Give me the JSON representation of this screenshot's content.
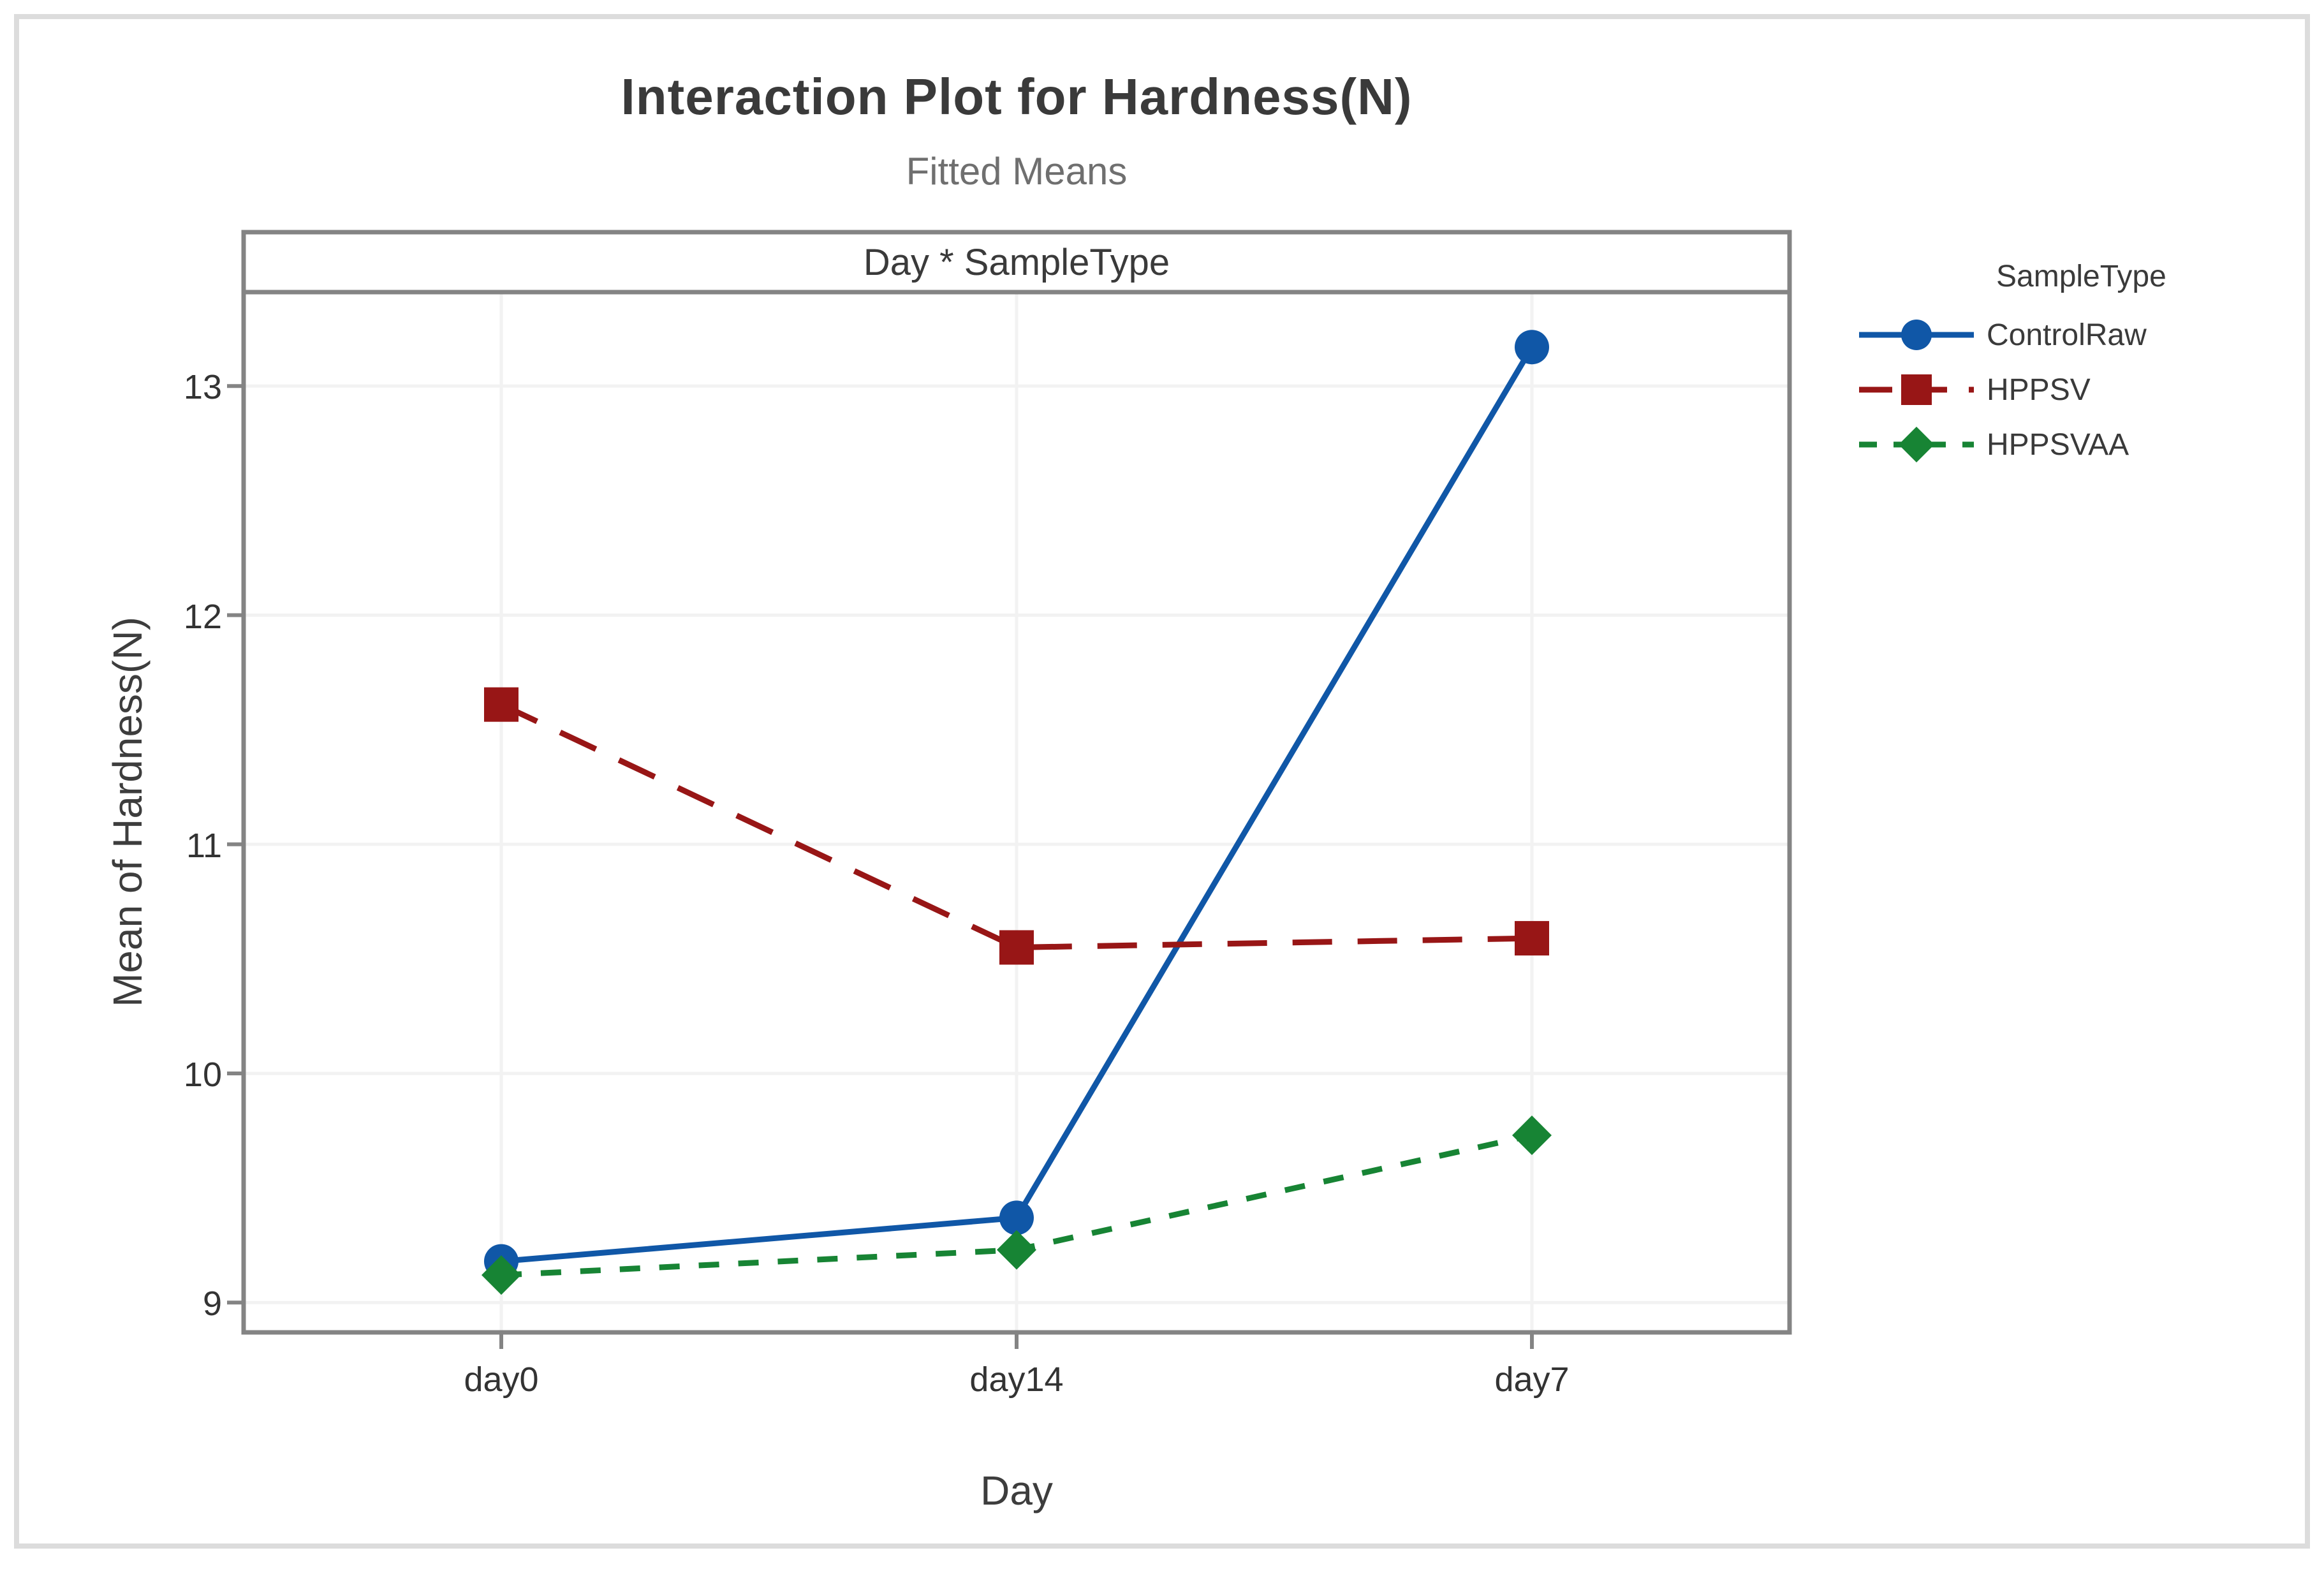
{
  "window": {
    "background": "#ffffff",
    "border_color": "#dcdcdc"
  },
  "title": "Interaction Plot for Hardness(N)",
  "subtitle": "Fitted Means",
  "chart_data": {
    "type": "line",
    "title": "Interaction Plot for Hardness(N)",
    "subtitle": "Fitted Means",
    "panel_label": "Day * SampleType",
    "xlabel": "Day",
    "ylabel": "Mean of Hardness(N)",
    "categories": [
      "day0",
      "day14",
      "day7"
    ],
    "yticks": [
      9,
      10,
      11,
      12,
      13
    ],
    "ylim": [
      8.87,
      13.41
    ],
    "grid": true,
    "legend": {
      "title": "SampleType",
      "position": "right"
    },
    "series": [
      {
        "name": "ControlRaw",
        "color": "#1057a7",
        "marker": "circle",
        "line_style": "solid",
        "values": [
          9.18,
          9.37,
          13.17
        ]
      },
      {
        "name": "HPPSV",
        "color": "#981616",
        "marker": "square",
        "line_style": "long-dash",
        "values": [
          11.61,
          10.55,
          10.59
        ]
      },
      {
        "name": "HPPSVAA",
        "color": "#178434",
        "marker": "diamond",
        "line_style": "short-dash",
        "values": [
          9.12,
          9.23,
          9.73
        ]
      }
    ]
  },
  "styles": {
    "frame_color": "#848484",
    "grid_color": "#f2f2f2",
    "tick_color": "#848484",
    "title_color": "#3a3a3a",
    "subtitle_color": "#6f6f6f",
    "tick_label_color": "#333333"
  }
}
